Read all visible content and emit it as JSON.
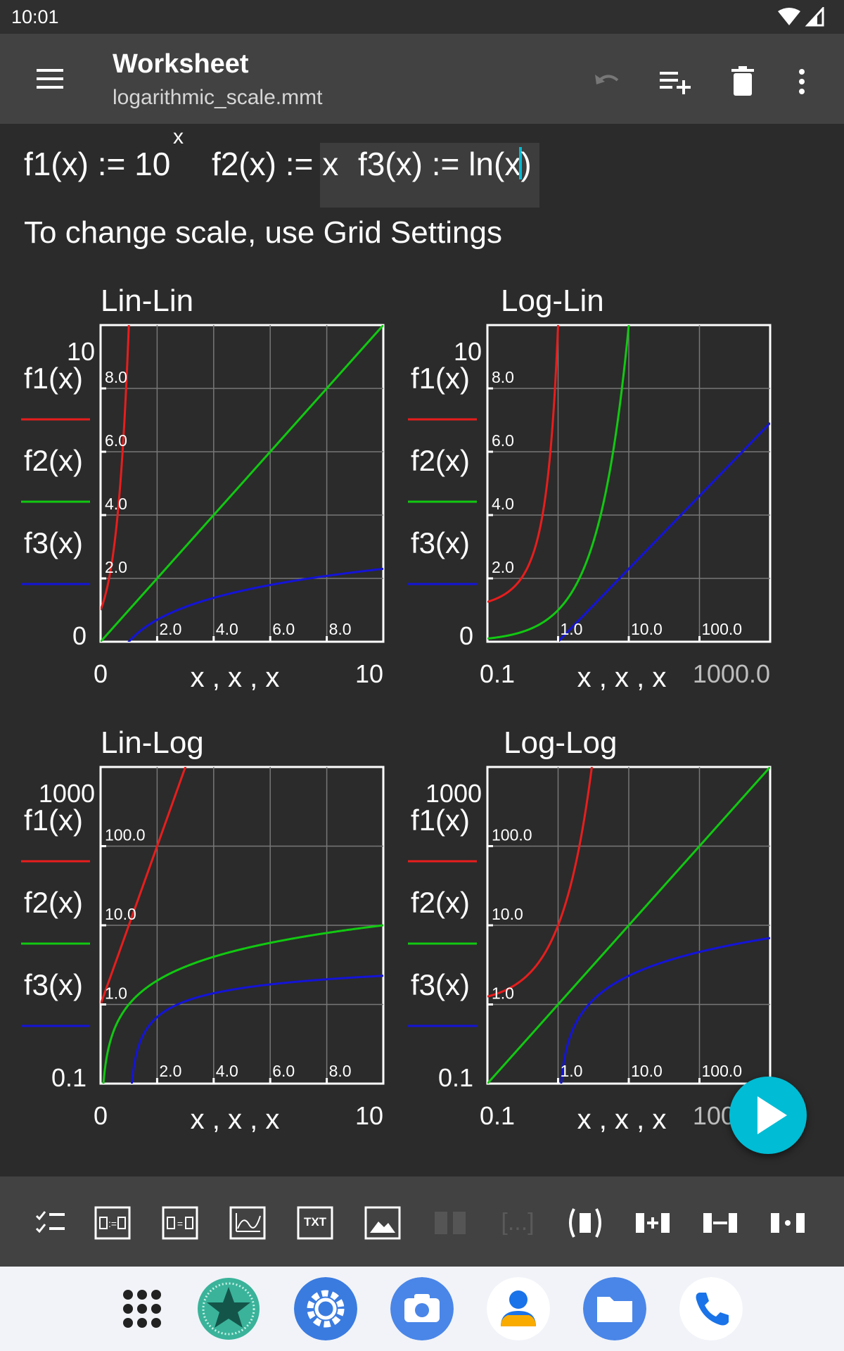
{
  "status_bar": {
    "time": "10:01"
  },
  "app_bar": {
    "title": "Worksheet",
    "subtitle": "logarithmic_scale.mmt",
    "icons": [
      "menu-icon",
      "undo-icon",
      "add-line-icon",
      "delete-icon",
      "more-vert-icon"
    ]
  },
  "worksheet": {
    "formulas": {
      "f1": {
        "lhs": "f1(x) := 10",
        "sup": "x"
      },
      "f2": {
        "text": "f2(x) := x"
      },
      "f3": {
        "before": "f3(x) := ln(x",
        "after": ")"
      }
    },
    "note": "To change scale, use Grid Settings"
  },
  "colors": {
    "f1": "#e81d1d",
    "f2": "#11c911",
    "f3": "#1414d8",
    "accent": "#00bcd4"
  },
  "legend": [
    "f1(x)",
    "f2(x)",
    "f3(x)"
  ],
  "chart_data": [
    {
      "type": "line",
      "title": "Lin-Lin",
      "xlabel": "x , x , x",
      "x_scale": "linear",
      "y_scale": "linear",
      "xlim": [
        0,
        10
      ],
      "ylim": [
        0,
        10
      ],
      "xmin_label": "0",
      "xmax_label": "10",
      "ymin_label": "0",
      "ymax_label": "10",
      "xticks": [
        {
          "value": 2,
          "label": "2.0"
        },
        {
          "value": 4,
          "label": "4.0"
        },
        {
          "value": 6,
          "label": "6.0"
        },
        {
          "value": 8,
          "label": "8.0"
        }
      ],
      "yticks": [
        {
          "value": 2,
          "label": "2.0"
        },
        {
          "value": 4,
          "label": "4.0"
        },
        {
          "value": 6,
          "label": "6.0"
        },
        {
          "value": 8,
          "label": "8.0"
        }
      ],
      "grid": true,
      "series": [
        {
          "name": "f1(x)",
          "function": "10^x"
        },
        {
          "name": "f2(x)",
          "function": "x"
        },
        {
          "name": "f3(x)",
          "function": "ln(x)"
        }
      ]
    },
    {
      "type": "line",
      "title": "Log-Lin",
      "xlabel": "x , x , x",
      "x_scale": "log",
      "y_scale": "linear",
      "xlim": [
        0.1,
        1000
      ],
      "ylim": [
        0,
        10
      ],
      "xmin_label": "0.1",
      "xmax_label": "1000.0",
      "ymin_label": "0",
      "ymax_label": "10",
      "xticks": [
        {
          "value": 1,
          "label": "1.0"
        },
        {
          "value": 10,
          "label": "10.0"
        },
        {
          "value": 100,
          "label": "100.0"
        }
      ],
      "yticks": [
        {
          "value": 2,
          "label": "2.0"
        },
        {
          "value": 4,
          "label": "4.0"
        },
        {
          "value": 6,
          "label": "6.0"
        },
        {
          "value": 8,
          "label": "8.0"
        }
      ],
      "grid": true,
      "series": [
        {
          "name": "f1(x)",
          "function": "10^x"
        },
        {
          "name": "f2(x)",
          "function": "x"
        },
        {
          "name": "f3(x)",
          "function": "ln(x)"
        }
      ]
    },
    {
      "type": "line",
      "title": "Lin-Log",
      "xlabel": "x , x , x",
      "x_scale": "linear",
      "y_scale": "log",
      "xlim": [
        0,
        10
      ],
      "ylim": [
        0.1,
        1000
      ],
      "xmin_label": "0",
      "xmax_label": "10",
      "ymin_label": "0.1",
      "ymax_label": "1000",
      "xticks": [
        {
          "value": 2,
          "label": "2.0"
        },
        {
          "value": 4,
          "label": "4.0"
        },
        {
          "value": 6,
          "label": "6.0"
        },
        {
          "value": 8,
          "label": "8.0"
        }
      ],
      "yticks": [
        {
          "value": 1,
          "label": "1.0"
        },
        {
          "value": 10,
          "label": "10.0"
        },
        {
          "value": 100,
          "label": "100.0"
        }
      ],
      "grid": true,
      "series": [
        {
          "name": "f1(x)",
          "function": "10^x"
        },
        {
          "name": "f2(x)",
          "function": "x"
        },
        {
          "name": "f3(x)",
          "function": "ln(x)"
        }
      ]
    },
    {
      "type": "line",
      "title": "Log-Log",
      "xlabel": "x , x , x",
      "x_scale": "log",
      "y_scale": "log",
      "xlim": [
        0.1,
        1000
      ],
      "ylim": [
        0.1,
        1000
      ],
      "xmin_label": "0.1",
      "xmax_label": "1000.0",
      "ymin_label": "0.1",
      "ymax_label": "1000",
      "xticks": [
        {
          "value": 1,
          "label": "1.0"
        },
        {
          "value": 10,
          "label": "10.0"
        },
        {
          "value": 100,
          "label": "100.0"
        }
      ],
      "yticks": [
        {
          "value": 1,
          "label": "1.0"
        },
        {
          "value": 10,
          "label": "10.0"
        },
        {
          "value": 100,
          "label": "100.0"
        }
      ],
      "grid": true,
      "series": [
        {
          "name": "f1(x)",
          "function": "10^x"
        },
        {
          "name": "f2(x)",
          "function": "x"
        },
        {
          "name": "f3(x)",
          "function": "ln(x)"
        }
      ]
    }
  ],
  "fab": {
    "icon": "play-icon"
  },
  "toolbar": {
    "icons": [
      "checklist-icon",
      "formula-define-icon",
      "formula-equation-icon",
      "plot-icon",
      "text-fragment-icon",
      "image-icon",
      "paste-icon",
      "brackets-icon",
      "parentheses-icon",
      "add-term-icon",
      "subtract-term-icon",
      "multiply-term-icon"
    ],
    "txt_label": "TXT",
    "brackets_label": "[...]"
  },
  "dock": {
    "apps": [
      "app-grid-icon",
      "microMathematics-icon",
      "settings-icon",
      "camera-icon",
      "contacts-icon",
      "files-icon",
      "phone-icon"
    ]
  }
}
